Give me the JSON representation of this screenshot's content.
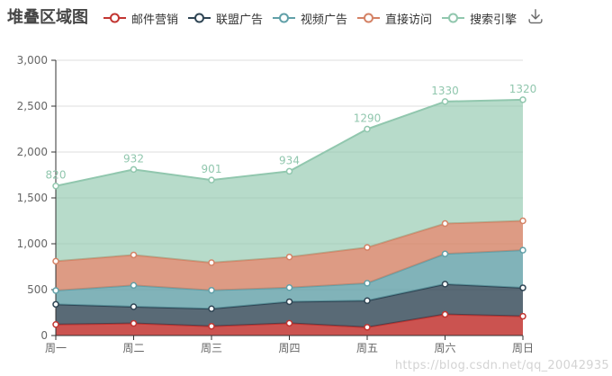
{
  "title": "堆叠区域图",
  "watermark": "https://blog.csdn.net/qq_20042935",
  "toolbox": {
    "save_icon": "download"
  },
  "colors": {
    "title_text": "#464646",
    "legend_text": "#333333",
    "axis_line": "#333333",
    "axis_label": "#666666",
    "grid_line": "#dddddd",
    "toolbox_icon": "#666666"
  },
  "chart_data": {
    "type": "area",
    "stacked": true,
    "title": "堆叠区域图",
    "grid": true,
    "legend_position": "top",
    "categories": [
      "周一",
      "周二",
      "周三",
      "周四",
      "周五",
      "周六",
      "周日"
    ],
    "series": [
      {
        "name": "邮件营销",
        "color": "#c23531",
        "fill_opacity": 0.85,
        "values": [
          120,
          132,
          101,
          134,
          90,
          230,
          210
        ],
        "show_labels": false
      },
      {
        "name": "联盟广告",
        "color": "#2f4554",
        "fill_opacity": 0.8,
        "values": [
          220,
          182,
          191,
          234,
          290,
          330,
          310
        ],
        "show_labels": false
      },
      {
        "name": "视频广告",
        "color": "#61a0a8",
        "fill_opacity": 0.8,
        "values": [
          150,
          232,
          201,
          154,
          190,
          330,
          410
        ],
        "show_labels": false
      },
      {
        "name": "直接访问",
        "color": "#d48265",
        "fill_opacity": 0.8,
        "values": [
          320,
          332,
          301,
          334,
          390,
          330,
          320
        ],
        "show_labels": false
      },
      {
        "name": "搜索引擎",
        "color": "#91c7ae",
        "fill_opacity": 0.65,
        "values": [
          820,
          932,
          901,
          934,
          1290,
          1330,
          1320
        ],
        "show_labels": true
      }
    ],
    "point_labels": [
      820,
      932,
      901,
      934,
      1290,
      1330,
      1320
    ],
    "xlabel": "",
    "ylabel": "",
    "ylim": [
      0,
      3000
    ],
    "y_tick_step": 500,
    "y_ticks": [
      "0",
      "500",
      "1,000",
      "1,500",
      "2,000",
      "2,500",
      "3,000"
    ]
  }
}
